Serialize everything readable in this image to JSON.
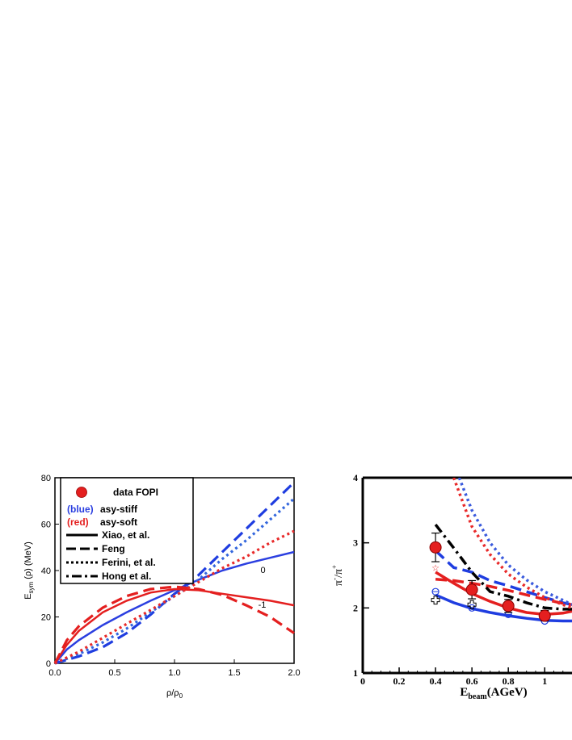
{
  "chart_data": [
    {
      "type": "line",
      "xlabel": "ρ/ρ",
      "xlabel_sub": "0",
      "ylabel": "E",
      "ylabel_sub": "sym",
      "ylabel_rest": "(ρ) (MeV)",
      "xlim": [
        0,
        2.0
      ],
      "ylim": [
        0,
        80
      ],
      "xticks": [
        "0.0",
        "0.5",
        "1.0",
        "1.5",
        "2.0"
      ],
      "yticks": [
        "0",
        "20",
        "40",
        "60",
        "80"
      ],
      "legend": {
        "placement": "top-left",
        "data_label": "data FOPI",
        "blue_tag": "(blue)",
        "blue_text": "asy-stiff",
        "red_tag": "(red)",
        "red_text": "asy-soft",
        "styles": [
          "Xiao, et al.",
          "Feng",
          "Ferini, et al.",
          "Hong et al."
        ]
      },
      "annotations": [
        {
          "text": "0",
          "x": 1.72,
          "y": 39
        },
        {
          "text": "-1",
          "x": 1.7,
          "y": 24
        }
      ],
      "series": [
        {
          "color": "#2b3fe0",
          "style": "solid",
          "x": [
            0,
            0.1,
            0.2,
            0.4,
            0.6,
            0.8,
            1.0,
            1.2,
            1.4,
            1.6,
            1.8,
            2.0
          ],
          "y": [
            0,
            6,
            10,
            16.5,
            22,
            27,
            31.5,
            36,
            40,
            43,
            45.5,
            48
          ]
        },
        {
          "color": "#1f3de0",
          "style": "dash",
          "x": [
            0,
            0.2,
            0.4,
            0.6,
            0.8,
            1.0,
            1.2,
            1.4,
            1.6,
            1.8,
            2.0
          ],
          "y": [
            0,
            3,
            7,
            13,
            21,
            30,
            38,
            48,
            58,
            68,
            78
          ]
        },
        {
          "color": "#3366dd",
          "style": "dot",
          "x": [
            0,
            0.2,
            0.4,
            0.6,
            0.8,
            1.0,
            1.2,
            1.4,
            1.6,
            1.8,
            2.0
          ],
          "y": [
            0,
            4,
            9,
            15,
            22,
            29,
            36,
            45,
            53,
            62,
            71
          ]
        },
        {
          "color": "#e41f1f",
          "style": "solid",
          "x": [
            0,
            0.1,
            0.2,
            0.4,
            0.6,
            0.8,
            1.0,
            1.2,
            1.4,
            1.6,
            1.8,
            2.0
          ],
          "y": [
            0,
            8,
            14,
            22,
            27,
            30.5,
            32,
            31.5,
            30,
            28.5,
            27,
            25
          ]
        },
        {
          "color": "#e41f1f",
          "style": "dash",
          "x": [
            0,
            0.1,
            0.2,
            0.4,
            0.6,
            0.8,
            1.0,
            1.2,
            1.4,
            1.6,
            1.8,
            2.0
          ],
          "y": [
            0,
            10,
            16,
            24,
            29,
            32,
            33,
            32,
            29.5,
            25,
            20,
            13
          ]
        },
        {
          "color": "#e82a2a",
          "style": "dot",
          "x": [
            0,
            0.2,
            0.4,
            0.6,
            0.8,
            1.0,
            1.2,
            1.4,
            1.6,
            1.8,
            2.0
          ],
          "y": [
            0,
            5,
            11,
            17,
            23,
            29,
            35,
            41,
            46,
            52,
            57
          ]
        }
      ],
      "data_points": {
        "color": "#e41f1f",
        "x": [
          1.0
        ],
        "y": [
          32
        ]
      }
    },
    {
      "type": "line",
      "xlabel": "E",
      "xlabel_sub": "beam",
      "xlabel_rest": "(AGeV)",
      "ylabel": "π",
      "ylabel_sup1": "-",
      "ylabel_mid": "/π",
      "ylabel_sup2": "+",
      "xlim": [
        0,
        1.15
      ],
      "ylim": [
        1,
        4
      ],
      "xticks": [
        "0",
        "0.2",
        "0.4",
        "0.6",
        "0.8",
        "1"
      ],
      "yticks": [
        "1",
        "2",
        "3",
        "4"
      ],
      "series": [
        {
          "color": "#1f3de0",
          "style": "solid",
          "x": [
            0.4,
            0.5,
            0.6,
            0.7,
            0.8,
            0.9,
            1.0,
            1.1,
            1.15
          ],
          "y": [
            2.2,
            2.08,
            1.99,
            1.93,
            1.88,
            1.84,
            1.81,
            1.8,
            1.8
          ]
        },
        {
          "color": "#e41f1f",
          "style": "solid",
          "x": [
            0.4,
            0.5,
            0.6,
            0.7,
            0.8,
            0.9,
            1.0,
            1.1,
            1.15
          ],
          "y": [
            2.55,
            2.38,
            2.22,
            2.1,
            2.0,
            1.93,
            1.9,
            1.92,
            1.95
          ]
        },
        {
          "color": "#1f3de0",
          "style": "dash",
          "x": [
            0.4,
            0.5,
            0.6,
            0.7,
            0.8,
            0.9,
            1.0,
            1.1,
            1.15
          ],
          "y": [
            2.88,
            2.62,
            2.55,
            2.42,
            2.34,
            2.25,
            2.16,
            2.08,
            2.05
          ]
        },
        {
          "color": "#e41f1f",
          "style": "dash",
          "x": [
            0.4,
            0.5,
            0.6,
            0.7,
            0.8,
            0.9,
            1.0,
            1.1,
            1.15
          ],
          "y": [
            2.44,
            2.42,
            2.38,
            2.33,
            2.27,
            2.2,
            2.13,
            2.07,
            2.05
          ]
        },
        {
          "color": "#000000",
          "style": "dashdot",
          "x": [
            0.4,
            0.5,
            0.6,
            0.7,
            0.8,
            0.9,
            1.0,
            1.1,
            1.15
          ],
          "y": [
            3.28,
            2.92,
            2.55,
            2.25,
            2.18,
            2.08,
            2.0,
            1.98,
            1.98
          ]
        },
        {
          "color": "#3b5bdd",
          "style": "dot",
          "x": [
            0.53,
            0.6,
            0.7,
            0.8,
            0.9,
            1.0,
            1.1,
            1.15
          ],
          "y": [
            4.0,
            3.5,
            3.0,
            2.66,
            2.43,
            2.25,
            2.12,
            2.05
          ]
        },
        {
          "color": "#e82a2a",
          "style": "dot",
          "x": [
            0.5,
            0.6,
            0.7,
            0.8,
            0.9,
            1.0,
            1.1,
            1.15
          ],
          "y": [
            4.0,
            3.25,
            2.82,
            2.52,
            2.32,
            2.16,
            2.05,
            2.0
          ]
        }
      ],
      "data_points": {
        "color": "#e41f1f",
        "x": [
          0.4,
          0.6,
          0.8,
          1.0
        ],
        "y": [
          2.93,
          2.28,
          2.03,
          1.88
        ],
        "err": [
          0.22,
          0.14,
          0.1,
          0.08
        ]
      },
      "open_circles_blue": {
        "x": [
          0.4,
          0.6,
          0.8,
          1.0
        ],
        "y": [
          2.25,
          2.0,
          1.9,
          1.8
        ]
      },
      "open_stars_red": {
        "x": [
          0.4,
          0.6,
          0.8
        ],
        "y": [
          2.62,
          2.35,
          2.1
        ]
      },
      "open_crosses_black": {
        "x": [
          0.4,
          0.6
        ],
        "y": [
          2.12,
          2.05
        ]
      }
    }
  ]
}
